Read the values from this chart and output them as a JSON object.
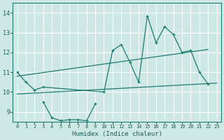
{
  "title": "",
  "xlabel": "Humidex (Indice chaleur)",
  "xlim": [
    -0.5,
    23.5
  ],
  "ylim": [
    8.5,
    14.5
  ],
  "yticks": [
    9,
    10,
    11,
    12,
    13,
    14
  ],
  "xticks": [
    0,
    1,
    2,
    3,
    4,
    5,
    6,
    7,
    8,
    9,
    10,
    11,
    12,
    13,
    14,
    15,
    16,
    17,
    18,
    19,
    20,
    21,
    22,
    23
  ],
  "bg_color": "#cde8e5",
  "grid_color": "#ffffff",
  "line_color": "#1e7b72",
  "curve1_x": [
    0,
    1,
    2,
    3,
    10,
    11,
    12,
    13,
    14,
    15,
    16,
    17,
    18,
    19,
    20,
    21,
    22
  ],
  "curve1_y": [
    11.0,
    10.5,
    10.1,
    10.25,
    10.0,
    12.1,
    12.4,
    11.5,
    10.5,
    13.85,
    12.5,
    13.3,
    12.9,
    12.0,
    12.1,
    11.0,
    10.4
  ],
  "curve2_x": [
    3,
    4,
    5,
    6,
    7,
    8,
    9
  ],
  "curve2_y": [
    9.5,
    8.7,
    8.55,
    8.6,
    8.6,
    8.55,
    9.4
  ],
  "line1_x": [
    0,
    22
  ],
  "line1_y": [
    10.8,
    12.15
  ],
  "line2_x": [
    0,
    23
  ],
  "line2_y": [
    9.9,
    10.45
  ]
}
